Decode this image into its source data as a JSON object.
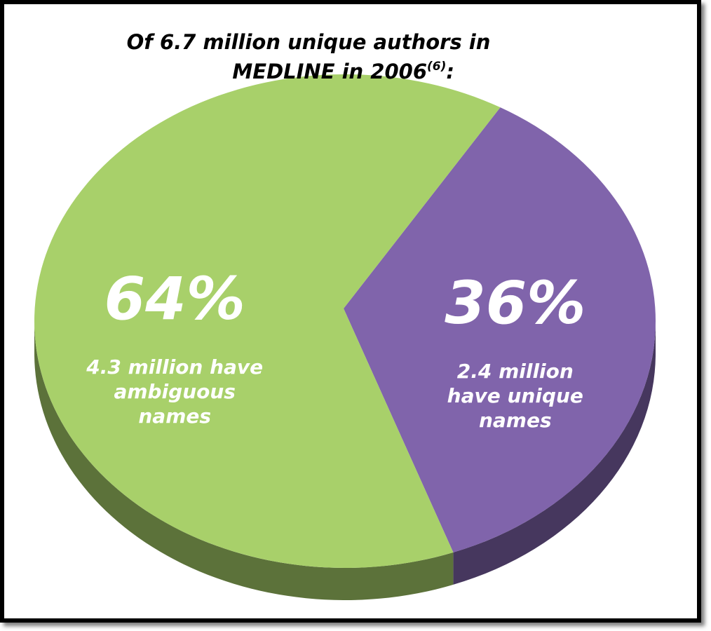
{
  "chart_data": {
    "type": "pie",
    "title": [
      "Of 6.7 million unique authors in",
      "MEDLINE in 2006"
    ],
    "title_superscript": "(6)",
    "title_suffix": ":",
    "categories": [
      [
        "2.4 million",
        "have unique",
        "names"
      ],
      [
        "4.3 million have",
        "ambiguous",
        "names"
      ]
    ],
    "values": [
      36,
      64
    ],
    "value_labels": [
      "36%",
      "64%"
    ],
    "colors": [
      "#8064ab",
      "#a8d06a"
    ]
  }
}
